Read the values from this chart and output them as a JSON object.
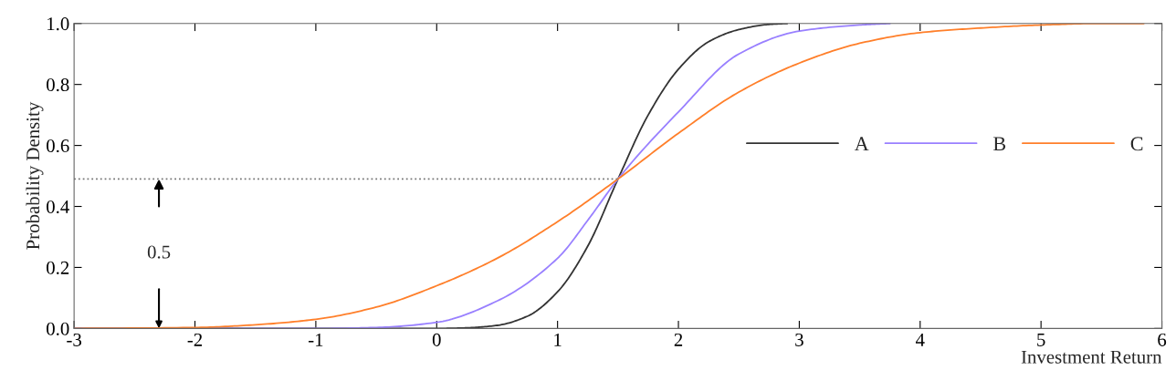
{
  "chart_data": {
    "type": "line",
    "xlabel": "Investment Return",
    "ylabel": "Probability Density",
    "xlim": [
      -3,
      6
    ],
    "xticks": [
      -3,
      -2,
      -1,
      0,
      1,
      2,
      3,
      4,
      5,
      6
    ],
    "ylim": [
      0,
      1
    ],
    "yticks": [
      {
        "value": 0,
        "label": "0.0"
      },
      0.2,
      0.4,
      0.6,
      0.8,
      {
        "value": 1,
        "label": "1.0"
      }
    ],
    "grid": false,
    "legend": "right",
    "line_style": "solid",
    "marker": "none",
    "annotations": [
      "0.5"
    ],
    "series": [
      {
        "name": "A",
        "color": "#333333",
        "x": [
          -3,
          -1,
          0,
          0.25,
          0.5,
          0.75,
          1,
          1.25,
          1.5,
          1.75,
          2,
          2.25,
          2.5,
          2.75,
          2.9
        ],
        "values": [
          0,
          0,
          0,
          0.002,
          0.01,
          0.04,
          0.12,
          0.27,
          0.49,
          0.7,
          0.85,
          0.94,
          0.98,
          0.997,
          1
        ]
      },
      {
        "name": "B",
        "color": "#9980ff",
        "x": [
          -3,
          -1,
          -0.5,
          0,
          0.5,
          1,
          1.26,
          1.5,
          2,
          2.5,
          3,
          3.5,
          3.75
        ],
        "values": [
          0,
          0,
          0.003,
          0.02,
          0.09,
          0.23,
          0.36,
          0.49,
          0.71,
          0.9,
          0.975,
          0.995,
          1
        ]
      },
      {
        "name": "C",
        "color": "#ff7f2a",
        "x": [
          -3,
          -2,
          -1.5,
          -1,
          -0.5,
          0,
          0.5,
          1,
          1.5,
          2,
          2.5,
          3,
          3.5,
          4,
          4.5,
          5,
          5.5,
          5.85
        ],
        "values": [
          0,
          0.003,
          0.012,
          0.03,
          0.07,
          0.14,
          0.23,
          0.35,
          0.49,
          0.64,
          0.775,
          0.87,
          0.935,
          0.97,
          0.985,
          0.995,
          1,
          1
        ]
      },
      {
        "color": "#777777",
        "line_style": "dotted",
        "x": [
          -3,
          1.5
        ],
        "values": [
          0.49,
          0.49
        ]
      }
    ]
  }
}
